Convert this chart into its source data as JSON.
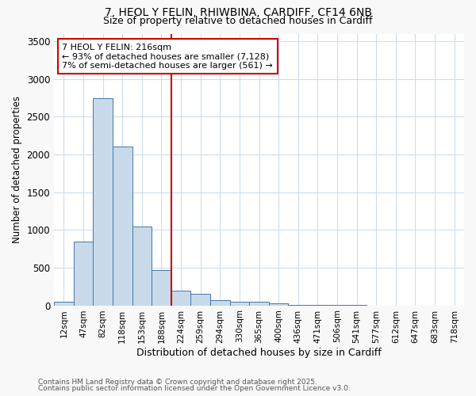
{
  "title1": "7, HEOL Y FELIN, RHIWBINA, CARDIFF, CF14 6NB",
  "title2": "Size of property relative to detached houses in Cardiff",
  "xlabel": "Distribution of detached houses by size in Cardiff",
  "ylabel": "Number of detached properties",
  "categories": [
    "12sqm",
    "47sqm",
    "82sqm",
    "118sqm",
    "153sqm",
    "188sqm",
    "224sqm",
    "259sqm",
    "294sqm",
    "330sqm",
    "365sqm",
    "400sqm",
    "436sqm",
    "471sqm",
    "506sqm",
    "541sqm",
    "577sqm",
    "612sqm",
    "647sqm",
    "683sqm",
    "718sqm"
  ],
  "values": [
    50,
    850,
    2750,
    2100,
    1050,
    470,
    200,
    150,
    70,
    50,
    50,
    30,
    10,
    5,
    2,
    1,
    0,
    0,
    0,
    0,
    0
  ],
  "bar_color": "#c8daea",
  "bar_edge_color": "#4477aa",
  "vline_x": 5.5,
  "vline_color": "#cc0000",
  "annotation_text": "7 HEOL Y FELIN: 216sqm\n← 93% of detached houses are smaller (7,128)\n7% of semi-detached houses are larger (561) →",
  "annotation_box_color": "#cc0000",
  "ylim": [
    0,
    3600
  ],
  "yticks": [
    0,
    500,
    1000,
    1500,
    2000,
    2500,
    3000,
    3500
  ],
  "footnote1": "Contains HM Land Registry data © Crown copyright and database right 2025.",
  "footnote2": "Contains public sector information licensed under the Open Government Licence v3.0.",
  "bg_color": "#f8f8f8",
  "plot_bg_color": "#ffffff",
  "grid_color": "#ccddee"
}
